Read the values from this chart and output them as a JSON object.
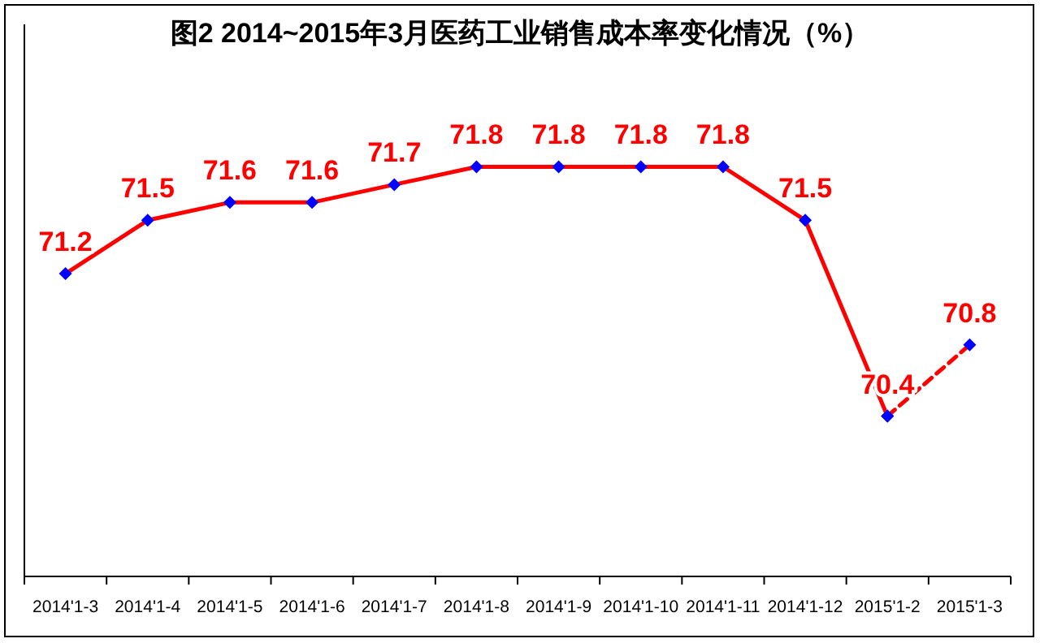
{
  "chart_data": {
    "type": "line",
    "title": "图2  2014~2015年3月医药工业销售成本率变化情况（%）",
    "categories": [
      "2014'1-3",
      "2014'1-4",
      "2014'1-5",
      "2014'1-6",
      "2014'1-7",
      "2014'1-8",
      "2014'1-9",
      "2014'1-10",
      "2014'1-11",
      "2014'1-12",
      "2015'1-2",
      "2015'1-3"
    ],
    "ylim": [
      69.5,
      72.6
    ],
    "tick_labels": "x",
    "marker": "diamond",
    "series": [
      {
        "color": "#ff0000",
        "line_style": "solid",
        "colors": [
          "#0000ff",
          "#0000ff",
          "#0000ff",
          "#0000ff",
          "#0000ff",
          "#0000ff",
          "#0000ff",
          "#0000ff",
          "#0000ff",
          "#0000ff",
          "#0000ff",
          null
        ],
        "values": [
          71.2,
          71.5,
          71.6,
          71.6,
          71.7,
          71.8,
          71.8,
          71.8,
          71.8,
          71.5,
          70.4,
          null
        ],
        "value_labels": [
          "71.2",
          "71.5",
          "71.6",
          "71.6",
          "71.7",
          "71.8",
          "71.8",
          "71.8",
          "71.8",
          "71.5",
          "70.4",
          null
        ]
      },
      {
        "color": "#ff0000",
        "line_style": "dashed",
        "colors": [
          null,
          null,
          null,
          null,
          null,
          null,
          null,
          null,
          null,
          null,
          "#0000ff",
          "#0000ff"
        ],
        "values": [
          null,
          null,
          null,
          null,
          null,
          null,
          null,
          null,
          null,
          null,
          70.4,
          70.8
        ],
        "value_labels": [
          null,
          null,
          null,
          null,
          null,
          null,
          null,
          null,
          null,
          null,
          null,
          "70.8"
        ]
      }
    ]
  }
}
